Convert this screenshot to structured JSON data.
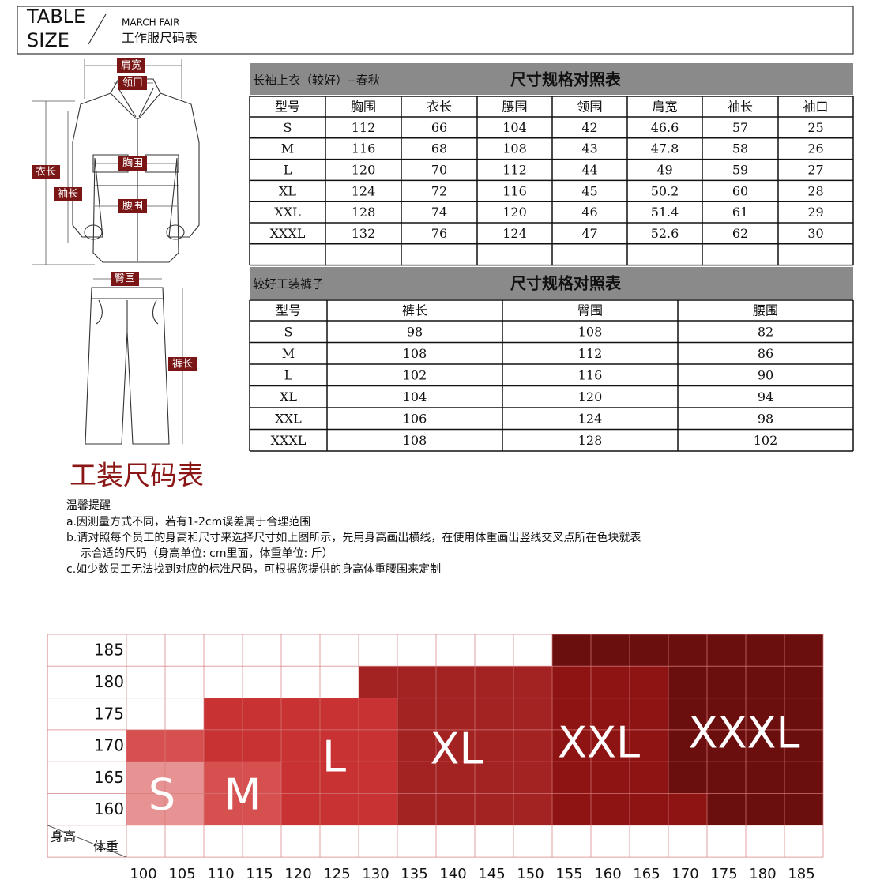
{
  "header": {
    "title_line1": "TABLE",
    "title_line2": "SIZE",
    "brand": "MARCH FAIR",
    "subtitle": "工作服尺码表"
  },
  "diagram": {
    "shoulder": "肩宽",
    "collar": "领口",
    "length": "衣长",
    "sleeve": "袖长",
    "chest": "胸围",
    "waist": "腰围",
    "hip": "臀围",
    "pants_length": "裤长"
  },
  "jacket_table": {
    "title": "长袖上衣（较好）--春秋",
    "heading": "尺寸规格对照表",
    "columns": [
      "型号",
      "胸围",
      "衣长",
      "腰围",
      "领围",
      "肩宽",
      "袖长",
      "袖口"
    ],
    "rows": [
      [
        "S",
        "112",
        "66",
        "104",
        "42",
        "46.6",
        "57",
        "25"
      ],
      [
        "M",
        "116",
        "68",
        "108",
        "43",
        "47.8",
        "58",
        "26"
      ],
      [
        "L",
        "120",
        "70",
        "112",
        "44",
        "49",
        "59",
        "27"
      ],
      [
        "XL",
        "124",
        "72",
        "116",
        "45",
        "50.2",
        "60",
        "28"
      ],
      [
        "XXL",
        "128",
        "74",
        "120",
        "46",
        "51.4",
        "61",
        "29"
      ],
      [
        "XXXL",
        "132",
        "76",
        "124",
        "47",
        "52.6",
        "62",
        "30"
      ]
    ]
  },
  "pants_table": {
    "title": "较好工装裤子",
    "heading": "尺寸规格对照表",
    "columns": [
      "型号",
      "裤长",
      "臀围",
      "腰围"
    ],
    "rows": [
      [
        "S",
        "98",
        "108",
        "82"
      ],
      [
        "M",
        "108",
        "112",
        "86"
      ],
      [
        "L",
        "102",
        "116",
        "90"
      ],
      [
        "XL",
        "104",
        "120",
        "94"
      ],
      [
        "XXL",
        "106",
        "124",
        "98"
      ],
      [
        "XXXL",
        "108",
        "128",
        "102"
      ]
    ]
  },
  "section_title": "工装尺码表",
  "notes": {
    "heading": "温馨提醒",
    "lines": [
      "a.因测量方式不同，若有1-2cm误差属于合理范围",
      "b.请对照每个员工的身高和尺寸来选择尺寸如上图所示，先用身高画出横线，在使用体重画出竖线交叉点所在色块就表",
      "示合适的尺码（身高单位: cm里面，体重单位: 斤）",
      "c.如少数员工无法找到对应的标准尺码，可根据您提供的身高体重腰围来定制"
    ]
  },
  "size_grid": {
    "height_label": "身高",
    "weight_label": "体重",
    "heights": [
      "185",
      "180",
      "175",
      "170",
      "165",
      "160"
    ],
    "weights": [
      "100",
      "105",
      "110",
      "115",
      "120",
      "125",
      "130",
      "135",
      "140",
      "145",
      "150",
      "155",
      "160",
      "165",
      "170",
      "175",
      "180",
      "185"
    ],
    "sizes": [
      "S",
      "M",
      "L",
      "XL",
      "XXL",
      "XXXL"
    ]
  }
}
